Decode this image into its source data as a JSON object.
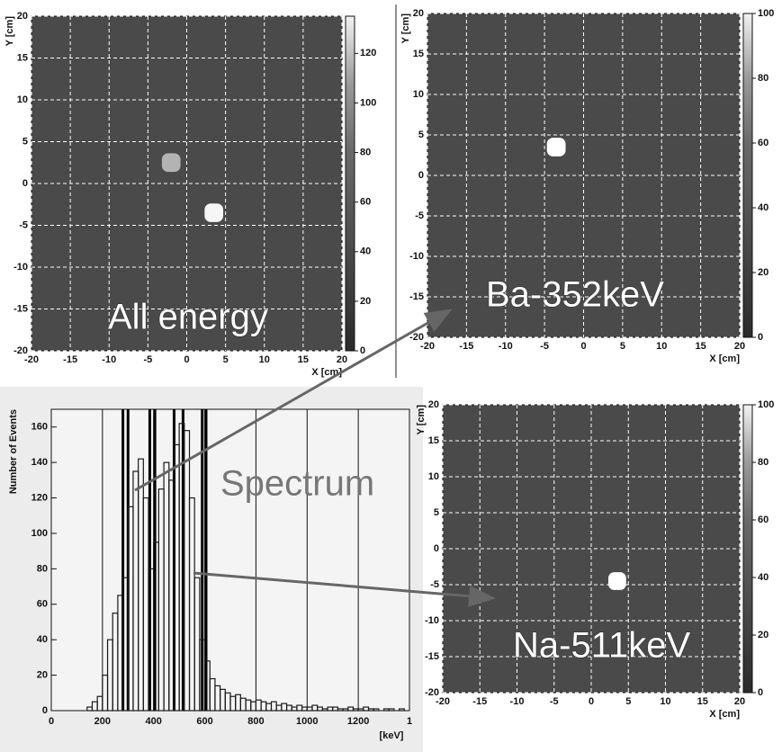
{
  "chart_data": [
    {
      "type": "heatmap",
      "annotation": "All energy",
      "xlabel": "X [cm]",
      "ylabel": "Y [cm]",
      "xlim": [
        -20,
        20
      ],
      "ylim": [
        -20,
        20
      ],
      "xticks": [
        -20,
        -15,
        -10,
        -5,
        0,
        5,
        10,
        15,
        20
      ],
      "yticks": [
        -20,
        -15,
        -10,
        -5,
        0,
        5,
        10,
        15,
        20
      ],
      "zlim": [
        0,
        135
      ],
      "zticks": [
        0,
        20,
        40,
        60,
        80,
        100,
        120
      ],
      "x": [
        -2,
        3.5
      ],
      "y": [
        2.5,
        -3.5
      ],
      "values": [
        95,
        130
      ],
      "grid": true
    },
    {
      "type": "heatmap",
      "annotation": "Ba-352keV",
      "xlabel": "X [cm]",
      "ylabel": "Y [cm]",
      "xlim": [
        -20,
        20
      ],
      "ylim": [
        -20,
        20
      ],
      "xticks": [
        -20,
        -15,
        -10,
        -5,
        0,
        5,
        10,
        15,
        20
      ],
      "yticks": [
        -20,
        -15,
        -10,
        -5,
        0,
        5,
        10,
        15,
        20
      ],
      "zlim": [
        0,
        100
      ],
      "zticks": [
        0,
        20,
        40,
        60,
        80,
        100
      ],
      "x": [
        -3.5
      ],
      "y": [
        3.5
      ],
      "values": [
        100
      ],
      "grid": true
    },
    {
      "type": "histogram",
      "annotation": "Spectrum",
      "xlabel": "[keV]",
      "ylabel": "Number of Events",
      "xlim": [
        0,
        1400
      ],
      "ylim": [
        0,
        170
      ],
      "xticks": [
        0,
        200,
        400,
        600,
        800,
        1000,
        1200,
        {
          "value": 1400,
          "label": "1"
        }
      ],
      "yticks": [
        0,
        20,
        40,
        60,
        80,
        100,
        120,
        140,
        160
      ],
      "bins": [
        0,
        20,
        40,
        60,
        80,
        100,
        120,
        140,
        160,
        180,
        200,
        220,
        240,
        260,
        280,
        300,
        320,
        340,
        360,
        380,
        400,
        420,
        440,
        460,
        480,
        500,
        520,
        540,
        560,
        580,
        600,
        620,
        640,
        660,
        680,
        700,
        720,
        740,
        760,
        780,
        800,
        820,
        840,
        860,
        880,
        900,
        920,
        940,
        960,
        980,
        1000,
        1020,
        1040,
        1060,
        1080,
        1100,
        1120,
        1140,
        1160,
        1180,
        1200,
        1220,
        1240,
        1260,
        1280,
        1300,
        1320,
        1340,
        1360,
        1380,
        1400
      ],
      "values": [
        0,
        0,
        0,
        0,
        0,
        0,
        0,
        2,
        5,
        8,
        20,
        40,
        55,
        65,
        75,
        115,
        135,
        142,
        120,
        80,
        95,
        125,
        140,
        130,
        150,
        162,
        158,
        120,
        75,
        40,
        28,
        18,
        14,
        12,
        10,
        8,
        9,
        7,
        6,
        5,
        6,
        5,
        4,
        5,
        3,
        4,
        3,
        2,
        3,
        2,
        2,
        3,
        2,
        1,
        2,
        2,
        1,
        1,
        2,
        1,
        1,
        2,
        1,
        1,
        0,
        1,
        1,
        0,
        1,
        0
      ],
      "window_lines": [
        280,
        300,
        385,
        405,
        480,
        515,
        590,
        605
      ],
      "color": "#1a1a1a",
      "grid": true
    },
    {
      "type": "heatmap",
      "annotation": "Na-511keV",
      "xlabel": "X [cm]",
      "ylabel": "Y [cm]",
      "xlim": [
        -20,
        20
      ],
      "ylim": [
        -20,
        20
      ],
      "xticks": [
        -20,
        -15,
        -10,
        -5,
        0,
        5,
        10,
        15,
        20
      ],
      "yticks": [
        -20,
        -15,
        -10,
        -5,
        0,
        5,
        10,
        15,
        20
      ],
      "zlim": [
        0,
        100
      ],
      "zticks": [
        0,
        20,
        40,
        60,
        80,
        100
      ],
      "x": [
        3.5
      ],
      "y": [
        -4.5
      ],
      "values": [
        100
      ],
      "grid": true
    }
  ]
}
